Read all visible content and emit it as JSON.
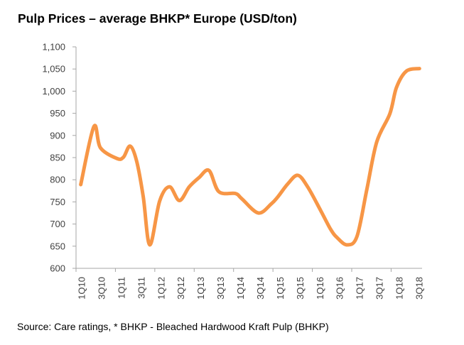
{
  "chart_data": {
    "type": "line",
    "title": "Pulp Prices – average BHKP* Europe (USD/ton)",
    "xlabel": "",
    "ylabel": "",
    "ylim": [
      600,
      1100
    ],
    "yticks": [
      "600",
      "650",
      "700",
      "750",
      "800",
      "850",
      "900",
      "950",
      "1,000",
      "1,050",
      "1,100"
    ],
    "ytick_values": [
      600,
      650,
      700,
      750,
      800,
      850,
      900,
      950,
      1000,
      1050,
      1100
    ],
    "xticks": [
      "1Q10",
      "3Q10",
      "1Q11",
      "3Q11",
      "1Q12",
      "3Q12",
      "1Q13",
      "3Q13",
      "1Q14",
      "3Q14",
      "1Q15",
      "3Q15",
      "1Q16",
      "3Q16",
      "1Q17",
      "3Q17",
      "1Q18",
      "3Q18"
    ],
    "xlim": [
      "2010-01",
      "2018-09"
    ],
    "grid": false,
    "line_color": "#F79646",
    "series": [
      {
        "points": [
          {
            "x": "2010-02",
            "y": 789
          },
          {
            "x": "2010-06",
            "y": 920
          },
          {
            "x": "2010-08",
            "y": 872
          },
          {
            "x": "2011-01",
            "y": 848
          },
          {
            "x": "2011-03",
            "y": 851
          },
          {
            "x": "2011-05",
            "y": 876
          },
          {
            "x": "2011-07",
            "y": 842
          },
          {
            "x": "2011-09",
            "y": 762
          },
          {
            "x": "2011-11",
            "y": 653
          },
          {
            "x": "2012-02",
            "y": 752
          },
          {
            "x": "2012-05",
            "y": 784
          },
          {
            "x": "2012-08",
            "y": 753
          },
          {
            "x": "2012-11",
            "y": 784
          },
          {
            "x": "2013-02",
            "y": 805
          },
          {
            "x": "2013-05",
            "y": 821
          },
          {
            "x": "2013-08",
            "y": 773
          },
          {
            "x": "2014-01",
            "y": 769
          },
          {
            "x": "2014-03",
            "y": 757
          },
          {
            "x": "2014-08",
            "y": 725
          },
          {
            "x": "2014-12",
            "y": 746
          },
          {
            "x": "2015-02",
            "y": 762
          },
          {
            "x": "2015-05",
            "y": 791
          },
          {
            "x": "2015-08",
            "y": 810
          },
          {
            "x": "2015-11",
            "y": 784
          },
          {
            "x": "2016-03",
            "y": 730
          },
          {
            "x": "2016-06",
            "y": 688
          },
          {
            "x": "2016-08",
            "y": 669
          },
          {
            "x": "2016-11",
            "y": 653
          },
          {
            "x": "2017-02",
            "y": 672
          },
          {
            "x": "2017-05",
            "y": 778
          },
          {
            "x": "2017-08",
            "y": 885
          },
          {
            "x": "2017-12",
            "y": 949
          },
          {
            "x": "2018-02",
            "y": 1008
          },
          {
            "x": "2018-05",
            "y": 1045
          },
          {
            "x": "2018-09",
            "y": 1051
          }
        ]
      }
    ]
  },
  "source": "Source: Care ratings, * BHKP - Bleached Hardwood Kraft Pulp (BHKP)"
}
